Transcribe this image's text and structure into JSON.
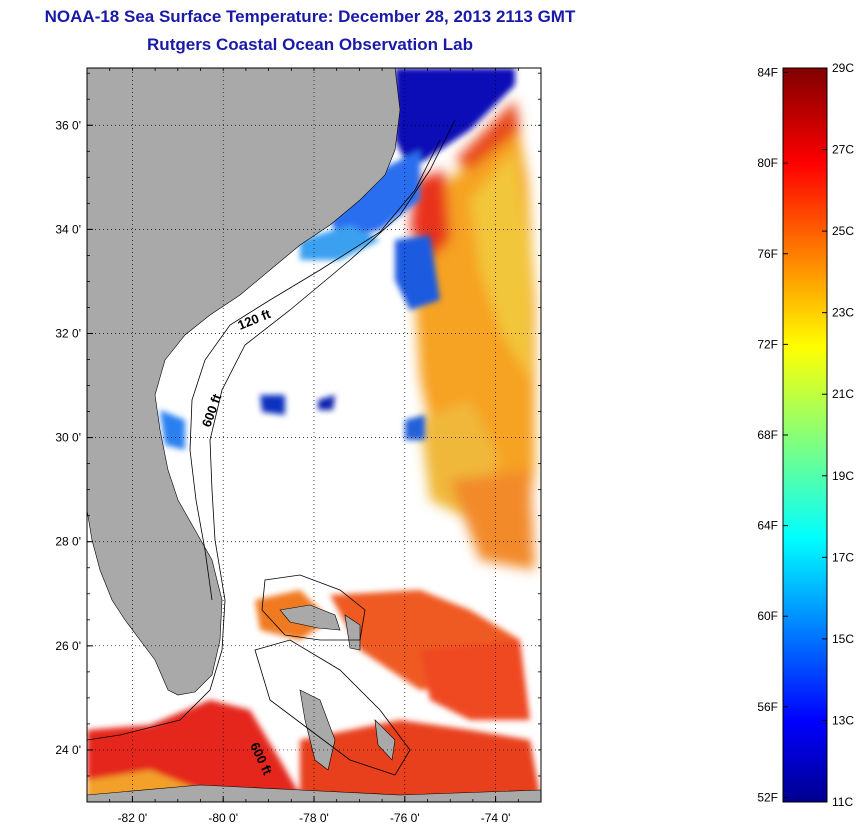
{
  "title": {
    "line1": "NOAA-18 Sea Surface Temperature:  December 28, 2013 2113 GMT",
    "line2": "Rutgers Coastal Ocean Observation Lab"
  },
  "map": {
    "lat_range": [
      23,
      37.1
    ],
    "lon_range": [
      -83,
      -73
    ],
    "lat_ticks": [
      {
        "value": 36,
        "label": "36 0'"
      },
      {
        "value": 34,
        "label": "34 0'"
      },
      {
        "value": 32,
        "label": "32 0'"
      },
      {
        "value": 30,
        "label": "30 0'"
      },
      {
        "value": 28,
        "label": "28 0'"
      },
      {
        "value": 26,
        "label": "26 0'"
      },
      {
        "value": 24,
        "label": "24 0'"
      }
    ],
    "lon_ticks": [
      {
        "value": -82,
        "label": "-82 0'"
      },
      {
        "value": -80,
        "label": "-80 0'"
      },
      {
        "value": -78,
        "label": "-78 0'"
      },
      {
        "value": -76,
        "label": "-76 0'"
      },
      {
        "value": -74,
        "label": "-74 0'"
      }
    ],
    "contour_labels": [
      {
        "text": "120 ft"
      },
      {
        "text": "600 ft"
      },
      {
        "text": "600 ft"
      }
    ],
    "grid": "dotted",
    "colors": {
      "land": "#a9a9a9",
      "no_data": "#ffffff"
    }
  },
  "colorbar": {
    "celsius_labels": [
      "29C",
      "27C",
      "25C",
      "23C",
      "21C",
      "19C",
      "17C",
      "15C",
      "13C",
      "11C"
    ],
    "fahrenheit_labels": [
      "84F",
      "80F",
      "76F",
      "72F",
      "68F",
      "64F",
      "60F",
      "56F",
      "52F"
    ],
    "range_c": [
      11,
      29
    ],
    "colormap": "jet"
  }
}
